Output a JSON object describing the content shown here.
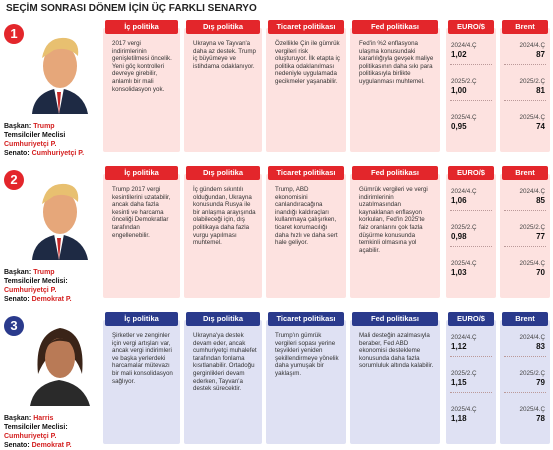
{
  "title": "SEÇİM SONRASI DÖNEM İÇİN ÜÇ FARKLI SENARYO",
  "headers": [
    "İç politika",
    "Dış politika",
    "Ticaret politikası",
    "Fed politikası",
    "EURO/$",
    "Brent"
  ],
  "scenarios": [
    {
      "number": "1",
      "roles": [
        {
          "label": "Başkan:",
          "value": "Trump"
        },
        {
          "label": "Temsilciler Meclisi",
          "value": "Cumhuriyetçi P."
        },
        {
          "label": "Senato:",
          "value": "Cumhuriyetçi P."
        }
      ],
      "texts": [
        "2017 vergi indirimlerinin genişletilmesi öncelik. Yeni göç kontrolleri devreye girebilir, anlamlı bir mali konsolidasyon yok.",
        "Ukrayna ve Tayvan'a daha az destek. Trump iç büyümeye ve istihdama odaklanıyor.",
        "Özellikle Çin ile gümrük vergileri risk oluşturuyor. İlk etapta iç politika odaklanılması nedeniyle uygulamada gecikmeler yaşanabilir.",
        "Fed'in %2 enflasyona ulaşma konusundaki kararlılığıyla gevşek maliye politikasının daha sıkı para politikasıyla birlikte uygulanması muhtemel."
      ],
      "euro": [
        {
          "period": "2024/4.Ç",
          "value": "1,02"
        },
        {
          "period": "2025/2.Ç",
          "value": "1,00"
        },
        {
          "period": "2025/4.Ç",
          "value": "0,95"
        }
      ],
      "brent": [
        {
          "period": "2024/4.Ç",
          "value": "87"
        },
        {
          "period": "2025/2.Ç",
          "value": "81"
        },
        {
          "period": "2025/4.Ç",
          "value": "74"
        }
      ]
    },
    {
      "number": "2",
      "roles": [
        {
          "label": "Başkan:",
          "value": "Trump"
        },
        {
          "label": "Temsilciler Meclisi:",
          "value": "Cumhuriyetçi P."
        },
        {
          "label": "Senato:",
          "value": "Demokrat P."
        }
      ],
      "texts": [
        "Trump 2017 vergi kesintilerini uzatabilir, ancak daha fazla kesinti ve harcama önceliği Demokratlar tarafından engellenebilir.",
        "İç gündem sıkıntılı olduğundan, Ukrayna konusunda Rusya ile bir anlaşma arayışında olabileceği için, dış politikaya daha fazla vurgu yapılması muhtemel.",
        "Trump, ABD ekonomisini canlandıracağına inandığı kaldıraçları kullanmaya çalışırken, ticaret korumacılığı daha hızlı ve daha sert hale geliyor.",
        "Gümrük vergileri ve vergi indirimlerinin uzatılmasından kaynaklanan enflasyon korkuları, Fed'in 2025'te faiz oranlarını çok fazla düşürme konusunda temkinli olmasına yol açabilir."
      ],
      "euro": [
        {
          "period": "2024/4.Ç",
          "value": "1,06"
        },
        {
          "period": "2025/2.Ç",
          "value": "0,98"
        },
        {
          "period": "2025/4.Ç",
          "value": "1,03"
        }
      ],
      "brent": [
        {
          "period": "2024/4.Ç",
          "value": "85"
        },
        {
          "period": "2025/2.Ç",
          "value": "77"
        },
        {
          "period": "2025/4.Ç",
          "value": "70"
        }
      ]
    },
    {
      "number": "3",
      "roles": [
        {
          "label": "Başkan:",
          "value": "Harris"
        },
        {
          "label": "Temsilciler Meclisi:",
          "value": "Cumhuriyetçi P."
        },
        {
          "label": "Senato:",
          "value": "Demokrat P."
        }
      ],
      "texts": [
        "Şirketler ve zenginler için vergi artışları var, ancak vergi indirimleri ve başka yerlerdeki harcamalar mütevazı bir mali konsolidasyon sağlıyor.",
        "Ukrayna'ya destek devam eder, ancak cumhuriyetçi muhalefet tarafından fonlama kısıtlanabilir. Ortadoğu gerginlikleri devam ederken, Tayvan'a destek sürecektir.",
        "Trump'ın gümrük vergileri sopası yerine teşvikleri yeniden şekillendirmeye yönelik daha yumuşak bir yaklaşım.",
        "Mali desteğin azalmasıyla beraber, Fed ABD ekonomisi destekleme konusunda daha fazla sorumluluk altında kalabilir."
      ],
      "euro": [
        {
          "period": "2024/4.Ç",
          "value": "1,12"
        },
        {
          "period": "2025/2.Ç",
          "value": "1,15"
        },
        {
          "period": "2025/4.Ç",
          "value": "1,18"
        }
      ],
      "brent": [
        {
          "period": "2024/4.Ç",
          "value": "83"
        },
        {
          "period": "2025/2.Ç",
          "value": "79"
        },
        {
          "period": "2025/4.Ç",
          "value": "78"
        }
      ]
    }
  ]
}
